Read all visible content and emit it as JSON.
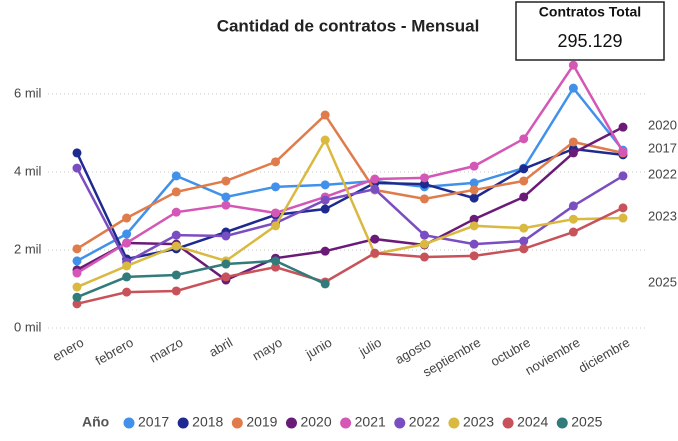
{
  "chart_data": {
    "type": "line",
    "title": "Cantidad de contratos - Mensual",
    "kpi": {
      "label": "Contratos Total",
      "value": "295.129"
    },
    "legend_title": "Año",
    "categories": [
      "enero",
      "febrero",
      "marzo",
      "abril",
      "mayo",
      "junio",
      "julio",
      "agosto",
      "septiembre",
      "octubre",
      "noviembre",
      "diciembre"
    ],
    "ylim": [
      0,
      7000
    ],
    "yticks": [
      {
        "value": 0,
        "label": "0 mil"
      },
      {
        "value": 2000,
        "label": "2 mil"
      },
      {
        "value": 4000,
        "label": "4 mil"
      },
      {
        "value": 6000,
        "label": "6 mil"
      }
    ],
    "grid": true,
    "end_labels": [
      "2020",
      "2017",
      "2022",
      "2023",
      "2025"
    ],
    "series": [
      {
        "name": "2017",
        "color": "#4191ea",
        "values": [
          1720,
          2410,
          3900,
          3360,
          3620,
          3670,
          3770,
          3620,
          3720,
          4100,
          6150,
          4560
        ]
      },
      {
        "name": "2018",
        "color": "#1d2a8f",
        "values": [
          4490,
          1770,
          2030,
          2460,
          2900,
          3050,
          3720,
          3690,
          3330,
          4080,
          4590,
          4440
        ]
      },
      {
        "name": "2019",
        "color": "#e07b4b",
        "values": [
          2030,
          2820,
          3490,
          3770,
          4260,
          5460,
          3540,
          3310,
          3540,
          3770,
          4770,
          4490
        ]
      },
      {
        "name": "2020",
        "color": "#6a1b78",
        "values": [
          1490,
          2180,
          2150,
          1230,
          1790,
          1970,
          2280,
          2130,
          2790,
          3360,
          4490,
          5150
        ]
      },
      {
        "name": "2021",
        "color": "#d457b6",
        "values": [
          1410,
          2180,
          2970,
          3150,
          2950,
          3360,
          3820,
          3850,
          4150,
          4850,
          6740,
          4510
        ]
      },
      {
        "name": "2022",
        "color": "#7a4dc1",
        "values": [
          4100,
          1690,
          2380,
          2360,
          2690,
          3280,
          3560,
          2380,
          2150,
          2230,
          3130,
          3900
        ]
      },
      {
        "name": "2023",
        "color": "#d9b93f",
        "values": [
          1050,
          1590,
          2100,
          1720,
          2620,
          4820,
          1900,
          2150,
          2620,
          2560,
          2790,
          2820
        ]
      },
      {
        "name": "2024",
        "color": "#c8525a",
        "values": [
          620,
          920,
          950,
          1310,
          1560,
          1180,
          1920,
          1820,
          1850,
          2030,
          2460,
          3080
        ]
      },
      {
        "name": "2025",
        "color": "#327b7b",
        "values": [
          790,
          1310,
          1360,
          1640,
          1720,
          1130,
          null,
          null,
          null,
          null,
          null,
          null
        ]
      }
    ]
  }
}
